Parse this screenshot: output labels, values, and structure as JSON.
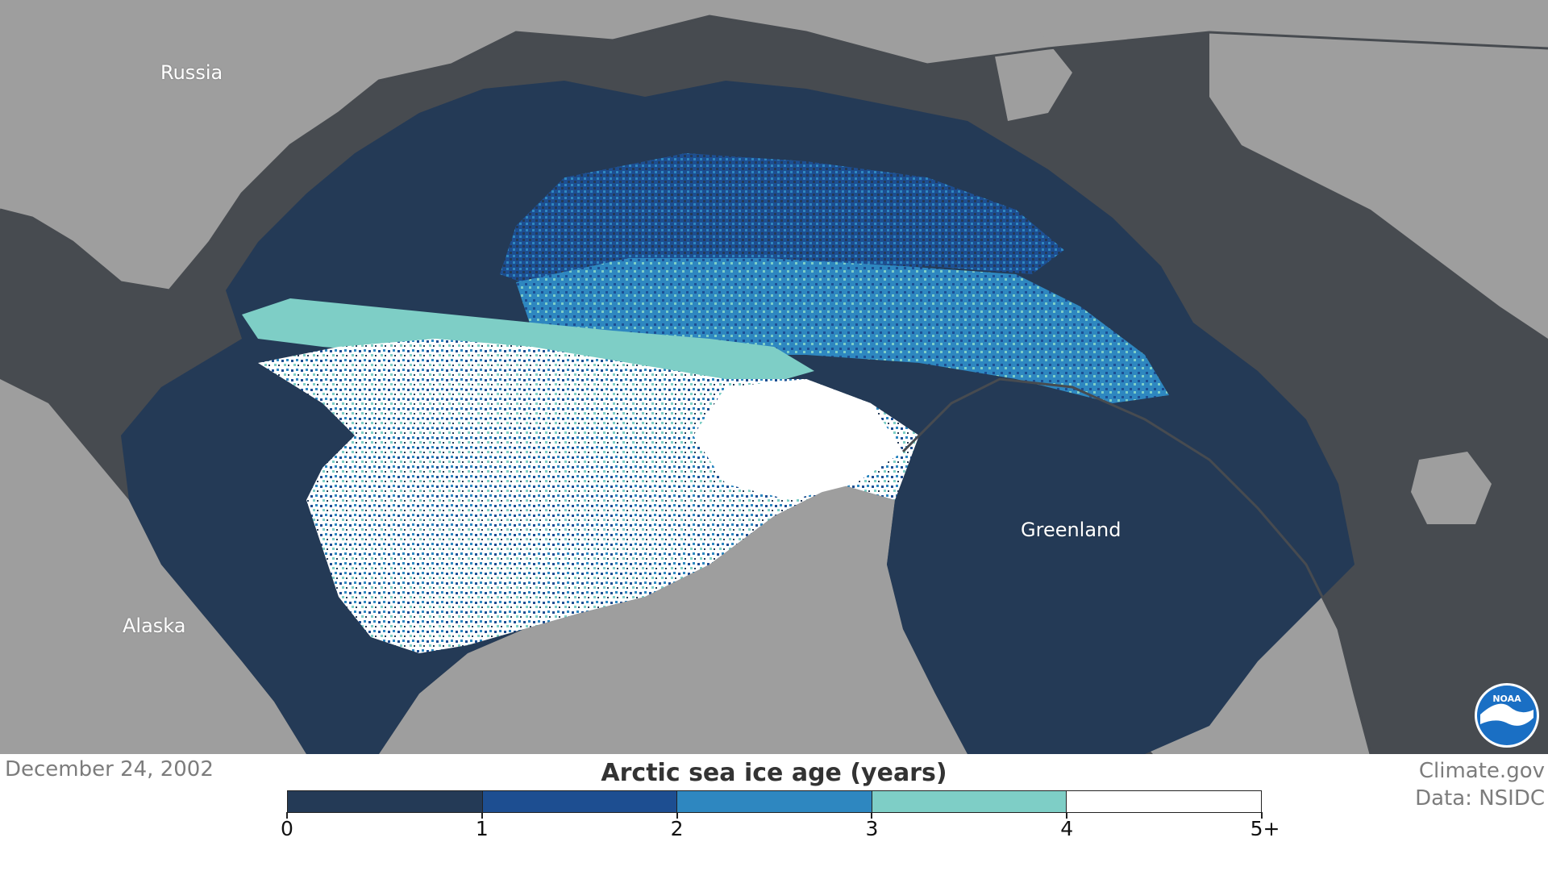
{
  "map": {
    "title": "Arctic sea ice age (years)",
    "date": "December 24, 2002",
    "labels": {
      "russia": "Russia",
      "alaska": "Alaska",
      "greenland": "Greenland"
    },
    "colors": {
      "land": "#9e9e9e",
      "coast": "#474b50",
      "open_water": "#243a56",
      "age_0_1": "#243a56",
      "age_1_2": "#1f4f94",
      "age_2_3": "#2f88c2",
      "age_3_4": "#7dcfc6",
      "age_5_plus": "#ffffff"
    }
  },
  "legend": {
    "title": "Arctic sea ice age (years)",
    "colors": [
      "#243a56",
      "#1d4e91",
      "#2e87c0",
      "#7ecec6",
      "#ffffff"
    ],
    "ticks": [
      "0",
      "1",
      "2",
      "3",
      "4",
      "5+"
    ]
  },
  "credit": {
    "line1": "Climate.gov",
    "line2": "Data: NSIDC"
  },
  "logo": {
    "icon": "noaa-logo-icon",
    "text": "NOAA"
  }
}
